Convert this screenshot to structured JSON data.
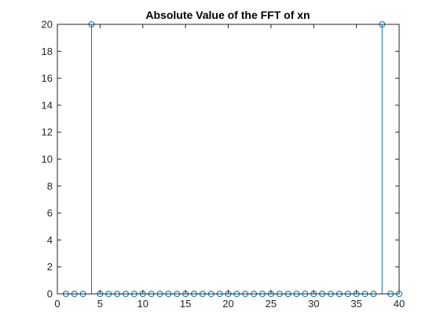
{
  "colors": {
    "background": "#ffffff",
    "axes": "#262626",
    "series": "#0072BD",
    "title": "#000000"
  },
  "chart_data": {
    "type": "stem",
    "title": "Absolute Value of the FFT of xn",
    "xlabel": "",
    "ylabel": "",
    "xlim": [
      0,
      40
    ],
    "ylim": [
      0,
      20
    ],
    "xticks": [
      0,
      5,
      10,
      15,
      20,
      25,
      30,
      35,
      40
    ],
    "yticks": [
      0,
      2,
      4,
      6,
      8,
      10,
      12,
      14,
      16,
      18,
      20
    ],
    "grid": false,
    "box": true,
    "marker": "open-circle",
    "series": [
      {
        "x": [
          1,
          2,
          3,
          4,
          5,
          6,
          7,
          8,
          9,
          10,
          11,
          12,
          13,
          14,
          15,
          16,
          17,
          18,
          19,
          20,
          21,
          22,
          23,
          24,
          25,
          26,
          27,
          28,
          29,
          30,
          31,
          32,
          33,
          34,
          35,
          36,
          37,
          38,
          39,
          40
        ],
        "y": [
          0,
          0,
          0,
          20,
          0,
          0,
          0,
          0,
          0,
          0,
          0,
          0,
          0,
          0,
          0,
          0,
          0,
          0,
          0,
          0,
          0,
          0,
          0,
          0,
          0,
          0,
          0,
          0,
          0,
          0,
          0,
          0,
          0,
          0,
          0,
          0,
          0,
          20,
          0,
          0
        ]
      }
    ]
  }
}
